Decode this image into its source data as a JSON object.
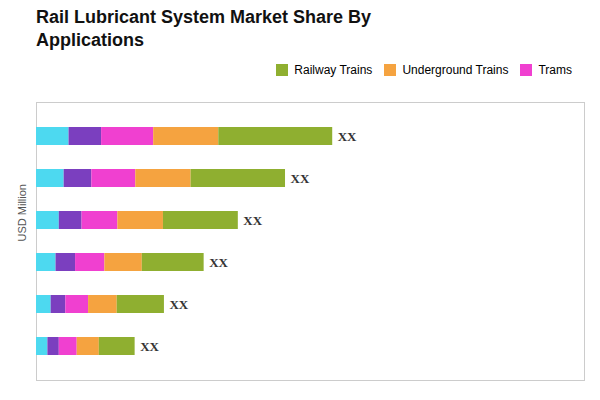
{
  "chart_data": {
    "type": "bar",
    "orientation": "horizontal",
    "stacked": true,
    "title": "Rail Lubricant System Market Share By\nApplications",
    "ylabel": "USD Million",
    "categories": [
      null,
      null,
      null,
      null,
      null,
      null
    ],
    "series": [
      {
        "color": "#4DD9F0",
        "values": [
          1.0,
          0.85,
          0.7,
          0.6,
          0.45,
          0.35
        ]
      },
      {
        "color": "#7B3FBF",
        "values": [
          1.0,
          0.85,
          0.7,
          0.6,
          0.45,
          0.35
        ]
      },
      {
        "name": "Trams",
        "color": "#F040D0",
        "values": [
          1.6,
          1.35,
          1.1,
          0.9,
          0.7,
          0.55
        ]
      },
      {
        "name": "Underground Trains",
        "color": "#F5A340",
        "values": [
          2.0,
          1.7,
          1.4,
          1.15,
          0.88,
          0.68
        ]
      },
      {
        "name": "Railway Trains",
        "color": "#8FAF30",
        "values": [
          3.5,
          2.9,
          2.3,
          1.9,
          1.45,
          1.1
        ]
      }
    ],
    "annotations": [
      "XX",
      "XX",
      "XX",
      "XX",
      "XX",
      "XX"
    ],
    "xlim": [
      0,
      16.835
    ],
    "xticks": [],
    "tick_labels": false,
    "grid": false
  }
}
